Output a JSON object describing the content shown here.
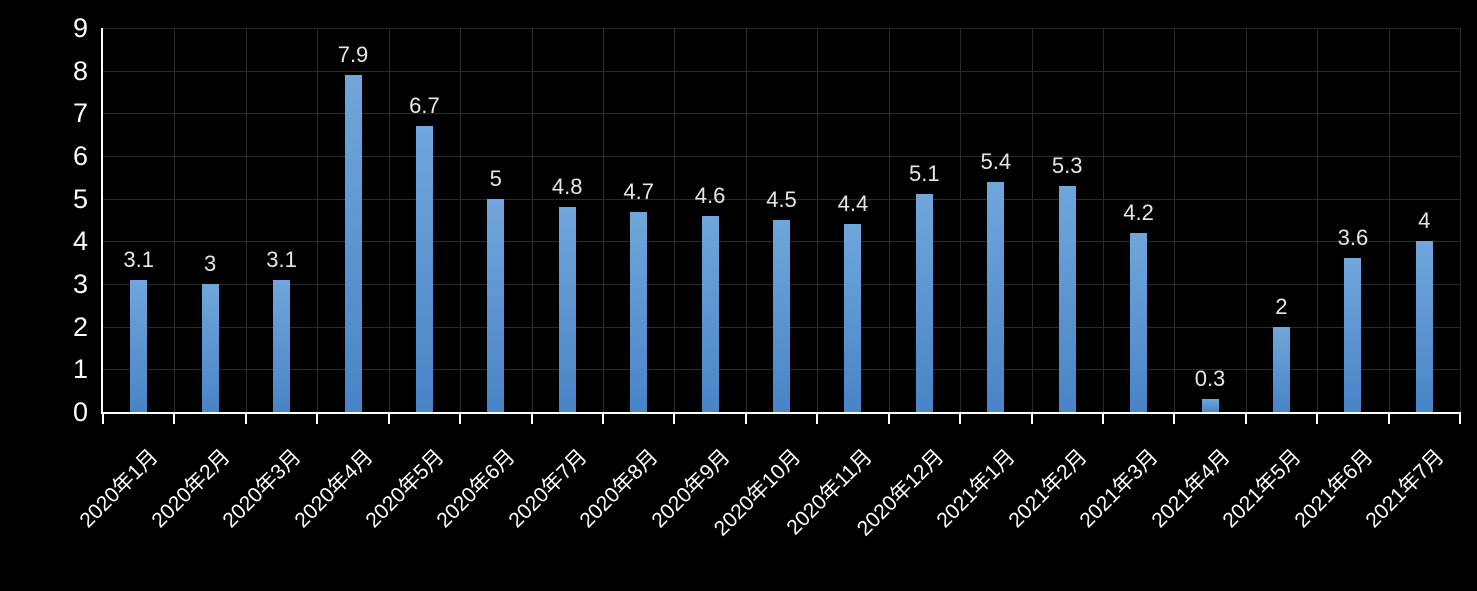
{
  "chart_data": {
    "type": "bar",
    "title": "",
    "xlabel": "",
    "ylabel": "",
    "categories": [
      "2020年1月",
      "2020年2月",
      "2020年3月",
      "2020年4月",
      "2020年5月",
      "2020年6月",
      "2020年7月",
      "2020年8月",
      "2020年9月",
      "2020年10月",
      "2020年11月",
      "2020年12月",
      "2021年1月",
      "2021年2月",
      "2021年3月",
      "2021年4月",
      "2021年5月",
      "2021年6月",
      "2021年7月"
    ],
    "values": [
      3.1,
      3,
      3.1,
      7.9,
      6.7,
      5,
      4.8,
      4.7,
      4.6,
      4.5,
      4.4,
      5.1,
      5.4,
      5.3,
      4.2,
      0.3,
      2,
      3.6,
      4
    ],
    "data_labels": [
      "3.1",
      "3",
      "3.1",
      "7.9",
      "6.7",
      "5",
      "4.8",
      "4.7",
      "4.6",
      "4.5",
      "4.4",
      "5.1",
      "5.4",
      "5.3",
      "4.2",
      "0.3",
      "2",
      "3.6",
      "4"
    ],
    "ylim": [
      0,
      9
    ],
    "y_ticks": [
      "0",
      "1",
      "2",
      "3",
      "4",
      "5",
      "6",
      "7",
      "8",
      "9"
    ],
    "grid": "horizontal-and-vertical",
    "legend": "none"
  },
  "colors": {
    "background": "#000000",
    "bar_top": "#70a6dc",
    "bar_bottom": "#4884c6",
    "gridline": "#2b2b2b",
    "axis_line": "#ffffff",
    "y_tick_label": "#ffffff",
    "x_tick_label": "#ffffff",
    "value_label": "#e9e7e1"
  }
}
